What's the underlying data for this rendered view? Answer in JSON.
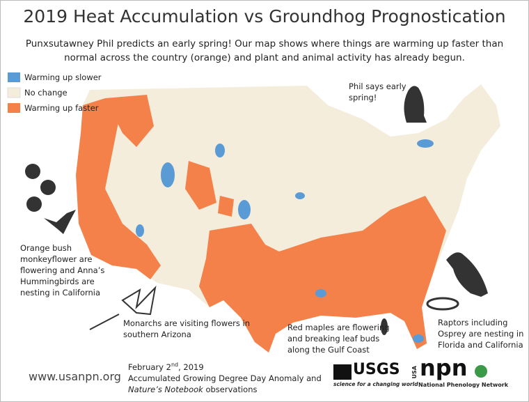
{
  "title": "2019 Heat Accumulation vs Groundhog Prognostication",
  "subtitle": [
    "Punxsutawney Phil predicts an early spring! Our map shows where things are warming up faster than",
    "normal across the country (orange) and plant and animal activity has already begun."
  ],
  "legend": [
    {
      "label": "Warming up slower",
      "color": "#5b9bd5"
    },
    {
      "label": "No change",
      "color": "#f4eddb"
    },
    {
      "label": "Warming up faster",
      "color": "#f5814a"
    }
  ],
  "annotations": {
    "groundhog": [
      "Phil says early",
      "spring!"
    ],
    "california": [
      "Orange bush",
      "monkeyflower are",
      "flowering and Anna’s",
      "Hummingbirds are",
      "nesting in California"
    ],
    "arizona": [
      "Monarchs are visiting flowers in",
      "southern Arizona"
    ],
    "gulf": [
      "Red maples are flowering",
      "and breaking leaf buds",
      "along the Gulf Coast"
    ],
    "raptors": [
      "Raptors including",
      "Osprey are nesting in",
      "Florida and California"
    ]
  },
  "footer": {
    "url": "www.usanpn.org",
    "date_main": "February 2",
    "date_suffix": "nd",
    "date_year": ", 2019",
    "line2": "Accumulated Growing Degree Day Anomaly and",
    "line3_italic": "Nature’s Notebook",
    "line3_rest": " observations"
  },
  "logos": {
    "usgs": "USGS",
    "usgs_tagline": "science for a changing world",
    "npn_usa": "USA",
    "npn": "npn",
    "npn_name": "National Phenology Network"
  }
}
